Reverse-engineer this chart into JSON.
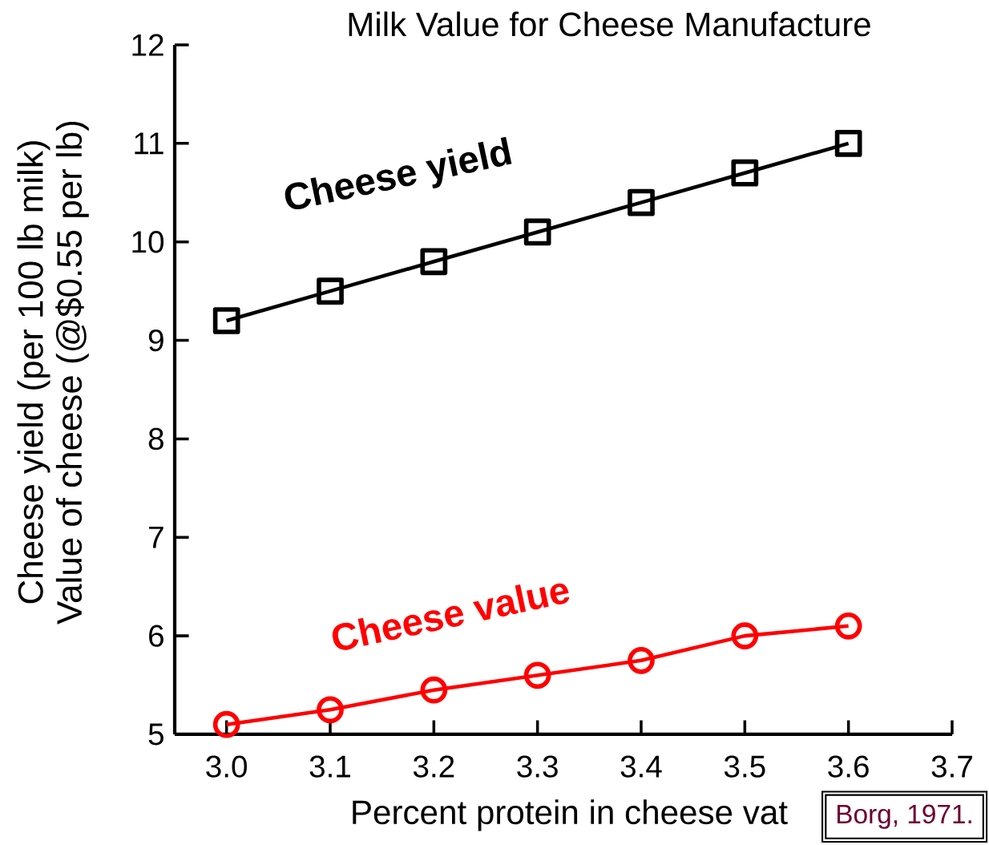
{
  "chart_data": {
    "type": "line",
    "title": "Milk Value for Cheese Manufacture",
    "xlabel": "Percent protein in cheese vat",
    "ylabel": "Cheese yield (per 100 lb milk)",
    "x": [
      3.0,
      3.1,
      3.2,
      3.3,
      3.4,
      3.5,
      3.6
    ],
    "series": [
      {
        "name": "Cheese yield",
        "color": "#000000",
        "marker": "square",
        "values": [
          9.2,
          9.5,
          9.8,
          10.1,
          10.4,
          10.7,
          11.0
        ]
      },
      {
        "name": "Cheese value",
        "color": "#ff0000",
        "marker": "circle",
        "values": [
          5.1,
          5.25,
          5.45,
          5.6,
          5.75,
          6.0,
          6.1
        ]
      }
    ],
    "xlim": [
      2.95,
      3.7
    ],
    "ylim": [
      5,
      12
    ],
    "xticks": [
      {
        "value": 3.0,
        "label": "3.0"
      },
      {
        "value": 3.1,
        "label": "3.1"
      },
      {
        "value": 3.2,
        "label": "3.2"
      },
      {
        "value": 3.3,
        "label": "3.3"
      },
      {
        "value": 3.4,
        "label": "3.4"
      },
      {
        "value": 3.5,
        "label": "3.5"
      },
      {
        "value": 3.6,
        "label": "3.6"
      },
      {
        "value": 3.7,
        "label": "3.7"
      }
    ],
    "yticks": [
      5,
      6,
      7,
      8,
      9,
      10,
      11,
      12
    ],
    "line_style": "solid",
    "annotations": [
      "Value of cheese (@$0.55 per lb)",
      "Borg, 1971."
    ]
  }
}
